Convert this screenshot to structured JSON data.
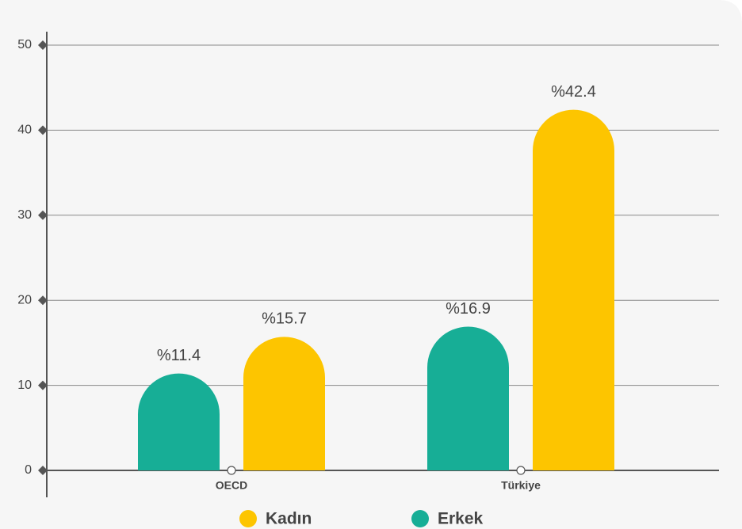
{
  "chart_data": {
    "type": "bar",
    "categories": [
      "OECD",
      "Türkiye"
    ],
    "series": [
      {
        "name": "Erkek",
        "color": "#17ae96",
        "values": [
          11.4,
          16.9
        ],
        "value_labels": [
          "%11.4",
          "%16.9"
        ]
      },
      {
        "name": "Kadın",
        "color": "#fdc500",
        "values": [
          15.7,
          42.4
        ],
        "value_labels": [
          "%15.7",
          "%42.4"
        ]
      }
    ],
    "ylim": [
      0,
      50
    ],
    "yticks": [
      0,
      10,
      20,
      30,
      40,
      50
    ],
    "grid": true,
    "legend": "bottom"
  }
}
